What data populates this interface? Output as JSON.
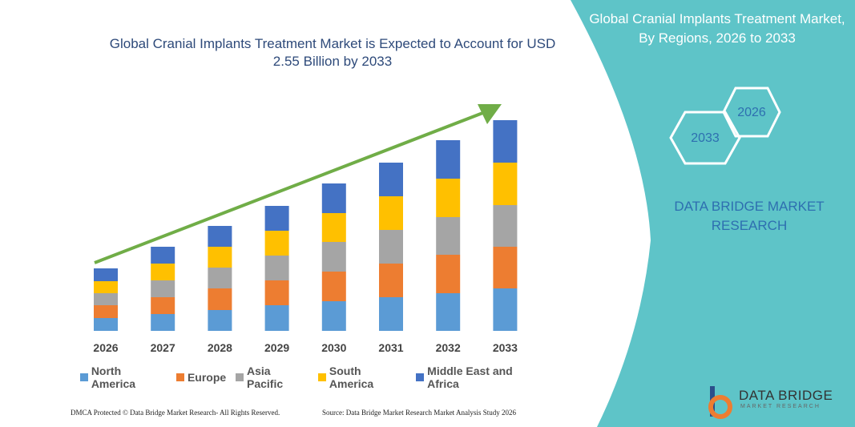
{
  "chart_data": {
    "type": "bar",
    "stacked": true,
    "title": "Global Cranial Implants Treatment Market is Expected to Account for USD 2.55 Billion by 2033",
    "categories": [
      "2026",
      "2027",
      "2028",
      "2029",
      "2030",
      "2031",
      "2032",
      "2033"
    ],
    "series": [
      {
        "name": "North America",
        "color": "#5b9bd5",
        "values": [
          16,
          21,
          26,
          32,
          37,
          42,
          47,
          53
        ]
      },
      {
        "name": "Europe",
        "color": "#ed7d31",
        "values": [
          16,
          21,
          27,
          31,
          37,
          42,
          48,
          52
        ]
      },
      {
        "name": "Asia Pacific",
        "color": "#a5a5a5",
        "values": [
          15,
          21,
          26,
          31,
          37,
          42,
          47,
          52
        ]
      },
      {
        "name": "South America",
        "color": "#ffc000",
        "values": [
          15,
          21,
          26,
          31,
          36,
          42,
          48,
          53
        ]
      },
      {
        "name": "Middle East and Africa",
        "color": "#4472c4",
        "values": [
          16,
          21,
          26,
          31,
          37,
          42,
          48,
          53
        ]
      }
    ],
    "trend_color": "#70ad47"
  },
  "panel": {
    "title": "Global Cranial Implants Treatment Market, By Regions, 2026 to 2033",
    "hexagons": [
      "2026",
      "2033"
    ],
    "brand": "DATA BRIDGE MARKET RESEARCH"
  },
  "logo": {
    "name": "DATA BRIDGE",
    "tagline": "MARKET RESEARCH"
  },
  "footer": {
    "left": "DMCA Protected © Data Bridge Market Research- All Rights Reserved.",
    "right": "Source: Data Bridge Market Research Market Analysis Study 2026"
  }
}
